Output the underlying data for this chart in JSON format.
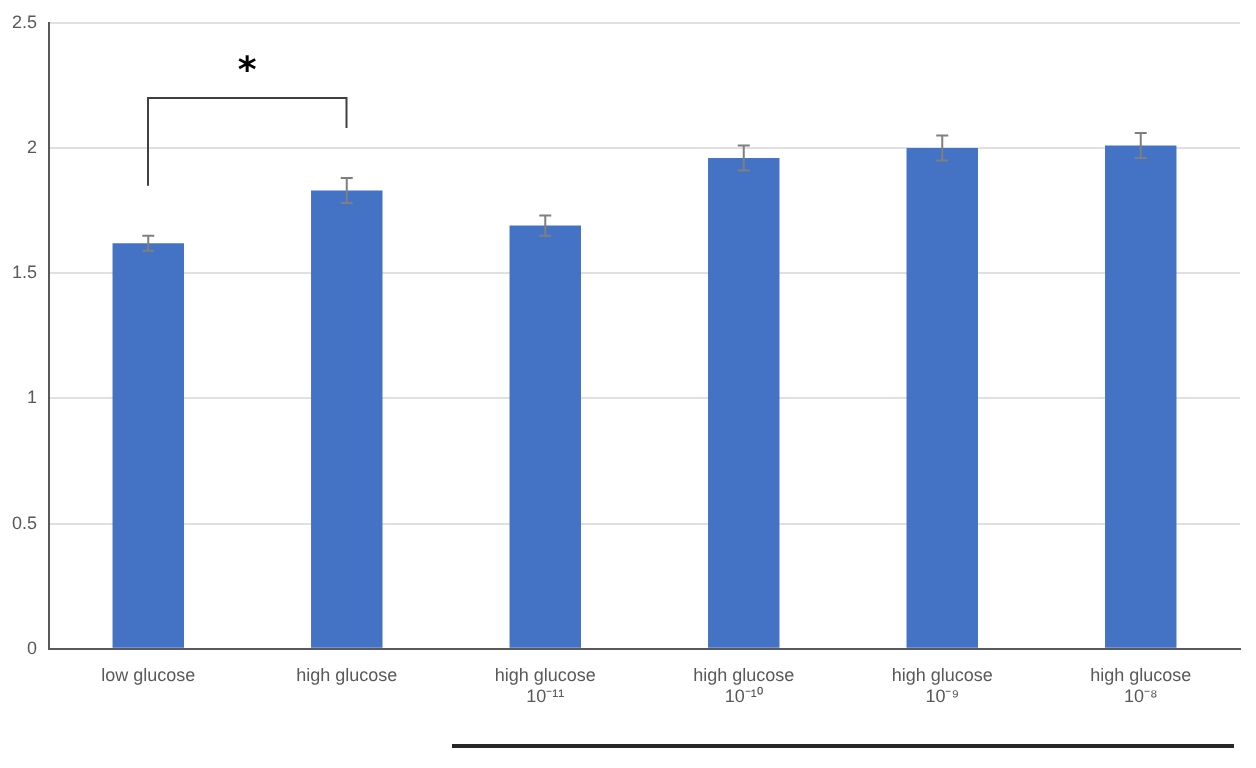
{
  "chart_data": {
    "type": "bar",
    "categories": [
      "low glucose",
      "high glucose",
      "high glucose\n10⁻¹¹",
      "high glucose\n10⁻¹⁰",
      "high glucose\n10⁻⁹",
      "high glucose\n10⁻⁸"
    ],
    "values": [
      1.62,
      1.83,
      1.69,
      1.96,
      2.0,
      2.01
    ],
    "errors": [
      0.03,
      0.05,
      0.04,
      0.05,
      0.05,
      0.05
    ],
    "color": "#4472c4",
    "ylim": [
      0,
      2.5
    ],
    "yticks": [
      0,
      0.5,
      1,
      1.5,
      2,
      2.5
    ],
    "grid": "y",
    "legend": false,
    "annotations": [
      "*"
    ]
  }
}
